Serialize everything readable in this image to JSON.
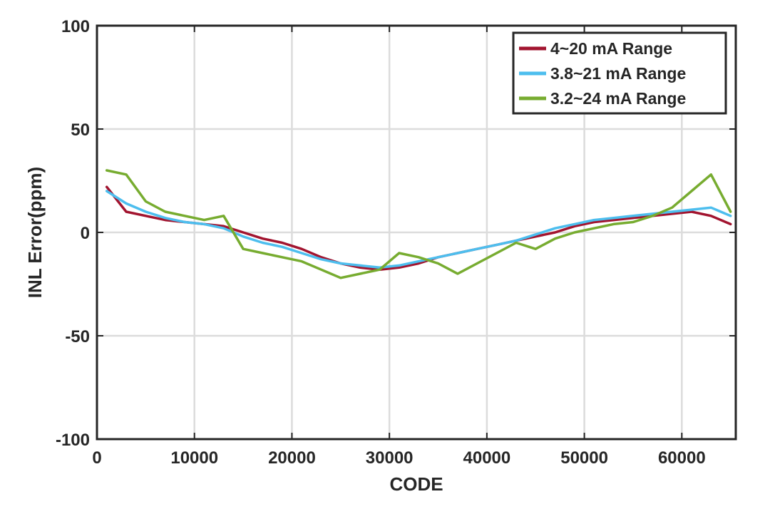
{
  "chart_data": {
    "type": "line",
    "title": "",
    "xlabel": "CODE",
    "ylabel": "INL Error(ppm)",
    "xlim": [
      0,
      65535
    ],
    "ylim": [
      -100,
      100
    ],
    "xticks": [
      0,
      10000,
      20000,
      30000,
      40000,
      50000,
      60000
    ],
    "xtick_labels": [
      "0",
      "10000",
      "20000",
      "30000",
      "40000",
      "50000",
      "60000"
    ],
    "yticks": [
      -100,
      -50,
      0,
      50,
      100
    ],
    "ytick_labels": [
      "-100",
      "-50",
      "0",
      "50",
      "100"
    ],
    "grid": true,
    "legend_position": "top-right",
    "series": [
      {
        "name": "4~20 mA Range",
        "color": "#a2142f",
        "x": [
          1000,
          3000,
          5000,
          7000,
          9000,
          11000,
          13000,
          15000,
          17000,
          19000,
          21000,
          23000,
          25000,
          27000,
          29000,
          31000,
          33000,
          35000,
          37000,
          39000,
          41000,
          43000,
          45000,
          47000,
          49000,
          51000,
          53000,
          55000,
          57000,
          59000,
          61000,
          63000,
          65000
        ],
        "y": [
          22,
          10,
          8,
          6,
          5,
          4,
          3,
          0,
          -3,
          -5,
          -8,
          -12,
          -15,
          -17,
          -18,
          -17,
          -15,
          -12,
          -10,
          -8,
          -6,
          -4,
          -2,
          0,
          3,
          5,
          6,
          7,
          8,
          9,
          10,
          8,
          4
        ]
      },
      {
        "name": "3.8~21 mA Range",
        "color": "#4dbeee",
        "x": [
          1000,
          3000,
          5000,
          7000,
          9000,
          11000,
          13000,
          15000,
          17000,
          19000,
          21000,
          23000,
          25000,
          27000,
          29000,
          31000,
          33000,
          35000,
          37000,
          39000,
          41000,
          43000,
          45000,
          47000,
          49000,
          51000,
          53000,
          55000,
          57000,
          59000,
          61000,
          63000,
          65000
        ],
        "y": [
          20,
          14,
          10,
          7,
          5,
          4,
          2,
          -2,
          -5,
          -7,
          -10,
          -13,
          -15,
          -16,
          -17,
          -16,
          -14,
          -12,
          -10,
          -8,
          -6,
          -4,
          -1,
          2,
          4,
          6,
          7,
          8,
          9,
          10,
          11,
          12,
          8
        ]
      },
      {
        "name": "3.2~24 mA Range",
        "color": "#77ac30",
        "x": [
          1000,
          3000,
          5000,
          7000,
          9000,
          11000,
          13000,
          15000,
          17000,
          19000,
          21000,
          23000,
          25000,
          27000,
          29000,
          31000,
          33000,
          35000,
          37000,
          39000,
          41000,
          43000,
          45000,
          47000,
          49000,
          51000,
          53000,
          55000,
          57000,
          59000,
          61000,
          63000,
          65000
        ],
        "y": [
          30,
          28,
          15,
          10,
          8,
          6,
          8,
          -8,
          -10,
          -12,
          -14,
          -18,
          -22,
          -20,
          -18,
          -10,
          -12,
          -15,
          -20,
          -15,
          -10,
          -5,
          -8,
          -3,
          0,
          2,
          4,
          5,
          8,
          12,
          20,
          28,
          10
        ]
      }
    ]
  }
}
